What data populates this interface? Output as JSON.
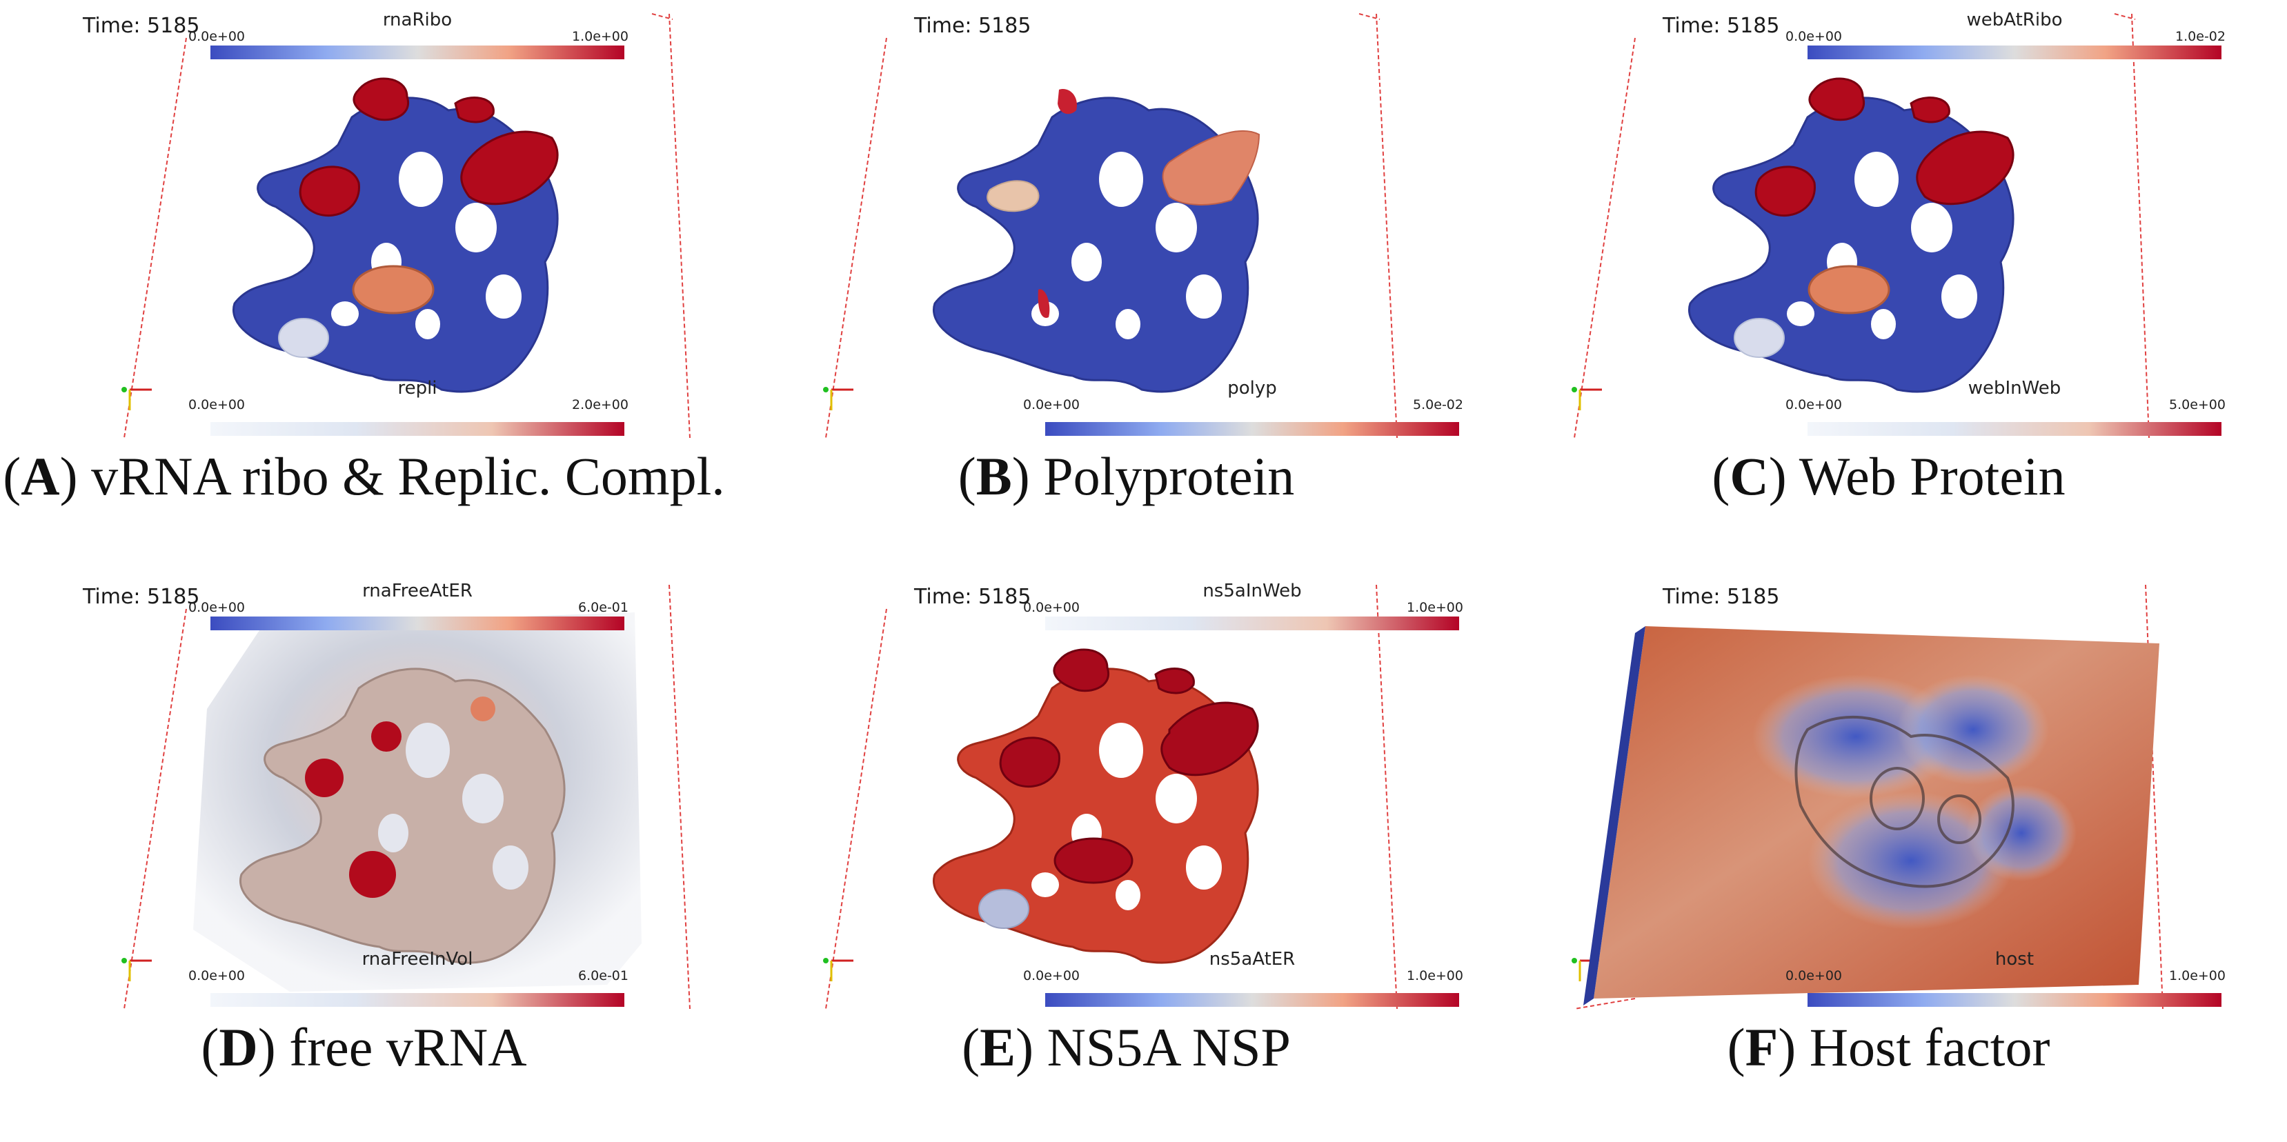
{
  "panels": [
    {
      "letter": "A",
      "title": "vRNA ribo & Replic. Compl.",
      "time_label": "Time: 5185",
      "legend_top": {
        "name": "rnaRibo",
        "min": "0.0e+00",
        "max": "1.0e+00",
        "colormap": "cool-to-warm"
      },
      "legend_bottom": {
        "name": "repli",
        "min": "0.0e+00",
        "max": "2.0e+00",
        "colormap": "white-to-red"
      },
      "colors": {
        "network": "#3848b0",
        "patch": "#b20a1c",
        "blob": "#e0825e"
      }
    },
    {
      "letter": "B",
      "title": "Polyprotein",
      "time_label": "Time: 5185",
      "legend_bottom": {
        "name": "polyp",
        "min": "0.0e+00",
        "max": "5.0e-02",
        "colormap": "cool-to-warm"
      },
      "colors": {
        "network": "#3848b0",
        "patch": "#e08568",
        "blob": "#c82030"
      }
    },
    {
      "letter": "C",
      "title": "Web Protein",
      "time_label": "Time: 5185",
      "legend_top": {
        "name": "webAtRibo",
        "min": "0.0e+00",
        "max": "1.0e-02",
        "colormap": "cool-to-warm"
      },
      "legend_bottom": {
        "name": "webInWeb",
        "min": "0.0e+00",
        "max": "5.0e+00",
        "colormap": "white-to-red"
      },
      "colors": {
        "network": "#3848b0",
        "patch": "#b20a1c",
        "blob": "#e0825e"
      }
    },
    {
      "letter": "D",
      "title": "free vRNA",
      "time_label": "Time: 5185",
      "legend_top": {
        "name": "rnaFreeAtER",
        "min": "0.0e+00",
        "max": "6.0e-01",
        "colormap": "cool-to-warm"
      },
      "legend_bottom": {
        "name": "rnaFreeInVol",
        "min": "0.0e+00",
        "max": "6.0e-01",
        "colormap": "white-to-red"
      },
      "colors": {
        "network": "#c8b0a8",
        "patch": "#b20a1c",
        "blob": "#b0b8c8"
      }
    },
    {
      "letter": "E",
      "title": "NS5A NSP",
      "time_label": "Time: 5185",
      "legend_top": {
        "name": "ns5aInWeb",
        "min": "0.0e+00",
        "max": "1.0e+00",
        "colormap": "white-to-red"
      },
      "legend_bottom": {
        "name": "ns5aAtER",
        "min": "0.0e+00",
        "max": "1.0e+00",
        "colormap": "cool-to-warm"
      },
      "colors": {
        "network": "#d0402e",
        "patch": "#a80a1c",
        "blob": "#b6bedc"
      }
    },
    {
      "letter": "F",
      "title": "Host factor",
      "time_label": "Time: 5185",
      "legend_bottom": {
        "name": "host",
        "min": "0.0e+00",
        "max": "1.0e+00",
        "colormap": "cool-to-warm"
      },
      "colors": {
        "network": "#2a46c0",
        "patch": "#c8603c",
        "blob": "#3a56c8"
      }
    }
  ]
}
